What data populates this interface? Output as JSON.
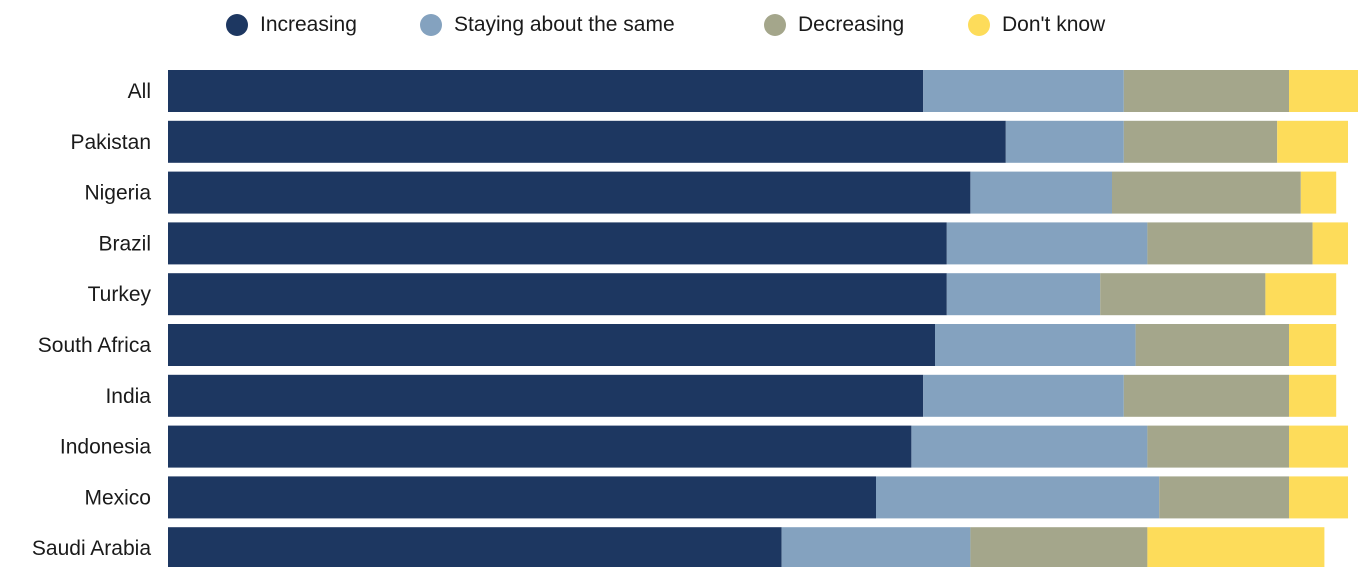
{
  "chart_data": {
    "type": "bar",
    "orientation": "horizontal",
    "stacked": true,
    "legend_position": "top",
    "grid": false,
    "xlim": [
      0,
      100
    ],
    "categories": [
      "All",
      "Pakistan",
      "Nigeria",
      "Brazil",
      "Turkey",
      "South Africa",
      "India",
      "Indonesia",
      "Mexico",
      "Saudi Arabia"
    ],
    "series": [
      {
        "name": "Increasing",
        "color": "#1d3761",
        "values": [
          64,
          71,
          68,
          66,
          66,
          65,
          64,
          63,
          60,
          52
        ]
      },
      {
        "name": "Staying about the same",
        "color": "#84a2bf",
        "values": [
          17,
          10,
          12,
          17,
          13,
          17,
          17,
          20,
          24,
          16
        ]
      },
      {
        "name": "Decreasing",
        "color": "#a4a68b",
        "values": [
          14,
          13,
          16,
          14,
          14,
          13,
          14,
          12,
          11,
          15
        ]
      },
      {
        "name": "Don't know",
        "color": "#fddc5a",
        "values": [
          6,
          6,
          3,
          3,
          6,
          4,
          4,
          5,
          5,
          15
        ]
      }
    ]
  }
}
